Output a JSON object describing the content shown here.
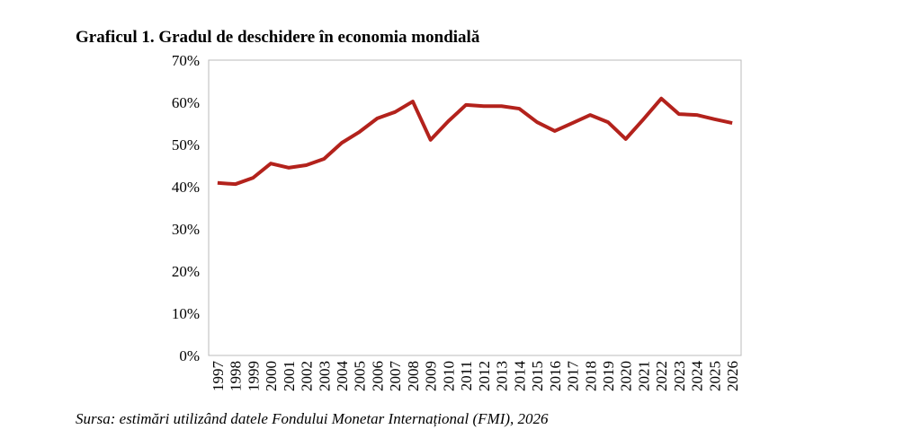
{
  "chart_data": {
    "type": "line",
    "title": "Graficul 1. Gradul de deschidere în economia mondială",
    "source": "Sursa: estimări utilizând datele Fondului Monetar Internațional (FMI), 2026",
    "categories": [
      "1997",
      "1998",
      "1999",
      "2000",
      "2001",
      "2002",
      "2003",
      "2004",
      "2005",
      "2006",
      "2007",
      "2008",
      "2009",
      "2010",
      "2011",
      "2012",
      "2013",
      "2014",
      "2015",
      "2016",
      "2017",
      "2018",
      "2019",
      "2020",
      "2021",
      "2022",
      "2023",
      "2024",
      "2025",
      "2026"
    ],
    "values": [
      40.9,
      40.6,
      42.1,
      45.5,
      44.5,
      45.1,
      46.6,
      50.4,
      53.0,
      56.2,
      57.7,
      60.2,
      51.1,
      55.5,
      59.4,
      59.1,
      59.1,
      58.5,
      55.3,
      53.2,
      55.1,
      57.0,
      55.3,
      51.3,
      56.0,
      60.9,
      57.2,
      57.0,
      56.0,
      55.1
    ],
    "color": "#b3221c",
    "ylim": [
      0,
      70
    ],
    "yticks": [
      {
        "value": 0,
        "label": "0%"
      },
      {
        "value": 10,
        "label": "10%"
      },
      {
        "value": 20,
        "label": "20%"
      },
      {
        "value": 30,
        "label": "30%"
      },
      {
        "value": 40,
        "label": "40%"
      },
      {
        "value": 50,
        "label": "50%"
      },
      {
        "value": 60,
        "label": "60%"
      },
      {
        "value": 70,
        "label": "70%"
      }
    ],
    "grid": false
  }
}
